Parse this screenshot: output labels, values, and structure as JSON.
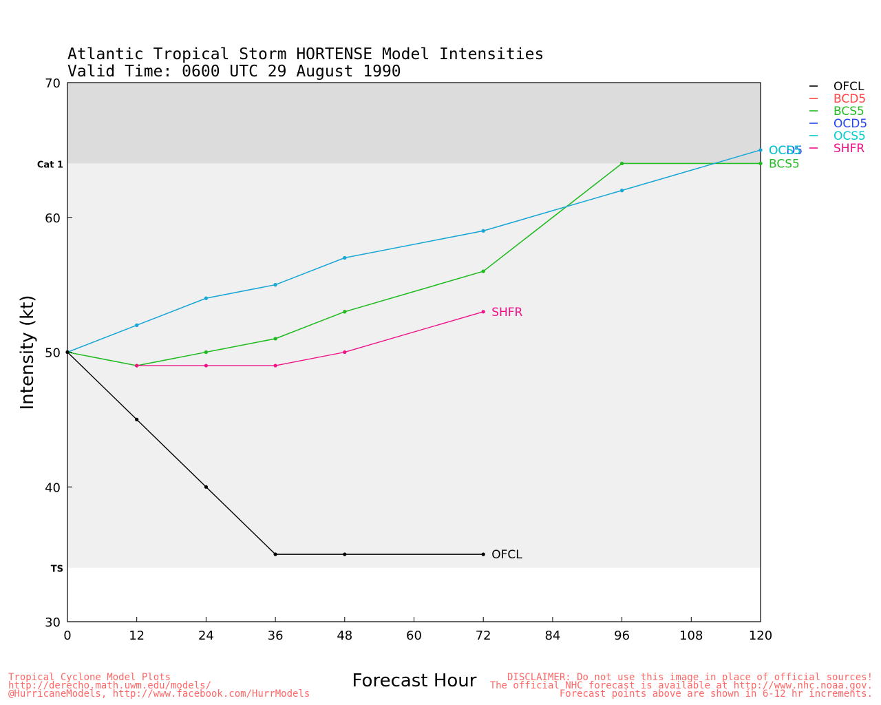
{
  "chart_data": {
    "type": "line",
    "title": "Atlantic Tropical Storm HORTENSE Model Intensities",
    "subtitle": "Valid Time: 0600 UTC 29 August 1990",
    "xlabel": "Forecast Hour",
    "ylabel": "Intensity (kt)",
    "xlim": [
      0,
      120
    ],
    "ylim": [
      30,
      70
    ],
    "xticks": [
      0,
      12,
      24,
      36,
      48,
      60,
      72,
      84,
      96,
      108,
      120
    ],
    "yticks": [
      30,
      40,
      50,
      60,
      70
    ],
    "bands": [
      {
        "label": "",
        "from": 64,
        "to": 70,
        "color": "#dcdcdc"
      },
      {
        "label": "",
        "from": 34,
        "to": 64,
        "color": "#f0f0f0"
      }
    ],
    "category_labels": [
      {
        "label": "Cat 1",
        "value": 64
      },
      {
        "label": "TS",
        "value": 34
      }
    ],
    "series": [
      {
        "name": "OFCL",
        "color": "#000000",
        "legend_color": "#000000",
        "x": [
          0,
          12,
          24,
          36,
          48,
          72
        ],
        "y": [
          50,
          45,
          40,
          35,
          35,
          35
        ],
        "end_label": "OFCL"
      },
      {
        "name": "BCD5",
        "color": "#22bb22",
        "legend_color": "#ff4444",
        "x": [
          0,
          12,
          24,
          36,
          48,
          72,
          96,
          120
        ],
        "y": [
          50,
          49,
          50,
          51,
          53,
          56,
          64,
          64
        ],
        "end_label": ""
      },
      {
        "name": "BCS5",
        "color": "#22bb22",
        "legend_color": "#22bb22",
        "x": [
          0,
          12,
          24,
          36,
          48,
          72,
          96,
          120
        ],
        "y": [
          50,
          49,
          50,
          51,
          53,
          56,
          64,
          64
        ],
        "end_label": "BCS5"
      },
      {
        "name": "OCD5",
        "color": "#1aa7d6",
        "legend_color": "#2244ee",
        "x": [
          0,
          12,
          24,
          36,
          48,
          72,
          96,
          120
        ],
        "y": [
          50,
          52,
          54,
          55,
          57,
          59,
          62,
          65
        ],
        "end_label": "OCD5"
      },
      {
        "name": "OCS5",
        "color": "#1aa7d6",
        "legend_color": "#00cccc",
        "x": [
          0,
          12,
          24,
          36,
          48,
          72,
          96,
          120
        ],
        "y": [
          50,
          52,
          54,
          55,
          57,
          59,
          62,
          65
        ],
        "end_label": "OCS5"
      },
      {
        "name": "SHFR",
        "color": "#ee1188",
        "legend_color": "#ee1188",
        "x": [
          12,
          24,
          36,
          48,
          72
        ],
        "y": [
          49,
          49,
          49,
          50,
          53
        ],
        "end_label": "SHFR"
      }
    ],
    "legend_position": "top-right"
  },
  "footer": {
    "left": [
      "Tropical Cyclone Model Plots",
      "http://derecho.math.uwm.edu/models/",
      "@HurricaneModels, http://www.facebook.com/HurrModels"
    ],
    "right": [
      "DISCLAIMER: Do not use this image in place of official sources!",
      "The official NHC forecast is available at http://www.nhc.noaa.gov.",
      "Forecast points above are shown in 6-12 hr increments."
    ]
  }
}
